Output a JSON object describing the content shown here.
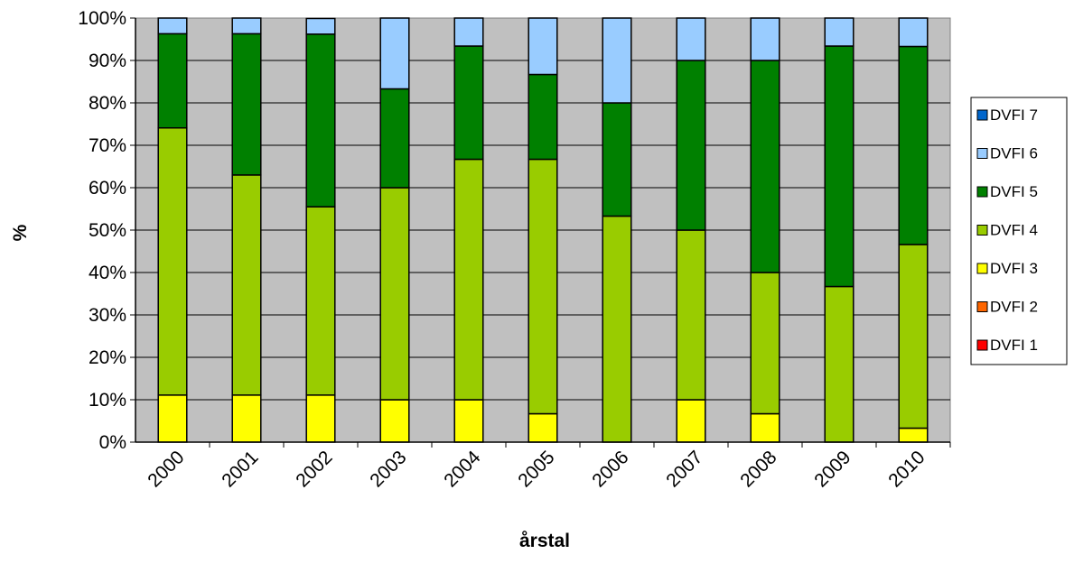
{
  "chart_data": {
    "type": "bar",
    "stacked": true,
    "percent": true,
    "title": "",
    "xlabel": "årstal",
    "ylabel": "%",
    "ylim": [
      0,
      100
    ],
    "yticks": [
      "0%",
      "10%",
      "20%",
      "30%",
      "40%",
      "50%",
      "60%",
      "70%",
      "80%",
      "90%",
      "100%"
    ],
    "grid": true,
    "plot_background": "#c0c0c0",
    "legend_position": "right",
    "categories": [
      "2000",
      "2001",
      "2002",
      "2003",
      "2004",
      "2005",
      "2006",
      "2007",
      "2008",
      "2009",
      "2010"
    ],
    "series": [
      {
        "name": "DVFI 1",
        "color": "#ff0000",
        "values": [
          0,
          0,
          0,
          0,
          0,
          0,
          0,
          0,
          0,
          0,
          0
        ]
      },
      {
        "name": "DVFI 2",
        "color": "#ff6600",
        "values": [
          0,
          0,
          0,
          0,
          0,
          0,
          0,
          0,
          0,
          0,
          0
        ]
      },
      {
        "name": "DVFI 3",
        "color": "#ffff00",
        "values": [
          11.1,
          11.1,
          11.1,
          10,
          10,
          6.7,
          0,
          10,
          6.7,
          0,
          3.3
        ]
      },
      {
        "name": "DVFI 4",
        "color": "#99cc00",
        "values": [
          63,
          51.9,
          44.4,
          50,
          56.7,
          60,
          53.3,
          40,
          33.3,
          36.7,
          43.3
        ]
      },
      {
        "name": "DVFI 5",
        "color": "#008000",
        "values": [
          22.2,
          33.3,
          40.7,
          23.3,
          26.7,
          20,
          26.7,
          40,
          50,
          56.7,
          46.7
        ]
      },
      {
        "name": "DVFI 6",
        "color": "#99ccff",
        "values": [
          3.7,
          3.7,
          3.7,
          16.7,
          6.6,
          13.3,
          20,
          10,
          10,
          6.6,
          6.7
        ]
      },
      {
        "name": "DVFI 7",
        "color": "#0066cc",
        "values": [
          0,
          0,
          0,
          0,
          0,
          0,
          0,
          0,
          0,
          0,
          0
        ]
      }
    ]
  }
}
